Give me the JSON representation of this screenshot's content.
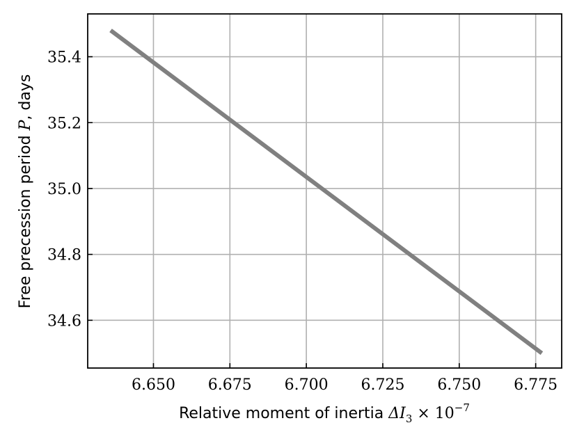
{
  "chart_data": {
    "type": "line",
    "x": [
      6.636,
      6.777
    ],
    "series": [
      {
        "values": [
          35.48,
          34.5
        ],
        "color": "#808080"
      }
    ],
    "xlim": [
      6.6285,
      6.7835
    ],
    "ylim": [
      34.455,
      35.53
    ],
    "xticks": [
      6.65,
      6.675,
      6.7,
      6.725,
      6.75,
      6.775
    ],
    "xtick_labels": [
      "6.650",
      "6.675",
      "6.700",
      "6.725",
      "6.750",
      "6.775"
    ],
    "yticks": [
      34.6,
      34.8,
      35.0,
      35.2,
      35.4
    ],
    "ytick_labels": [
      "34.6",
      "34.8",
      "35.0",
      "35.2",
      "35.4"
    ],
    "xlabel": {
      "text": "Relative moment of inertia ",
      "symbol": "ΔI",
      "subscript": "3",
      "times": " × 10",
      "exponent": "−7"
    },
    "ylabel": {
      "text": "Free precession period ",
      "symbol": "P",
      "suffix": ", days"
    },
    "grid": true,
    "grid_color": "#b0b0b0",
    "ticks_direction": "in"
  }
}
